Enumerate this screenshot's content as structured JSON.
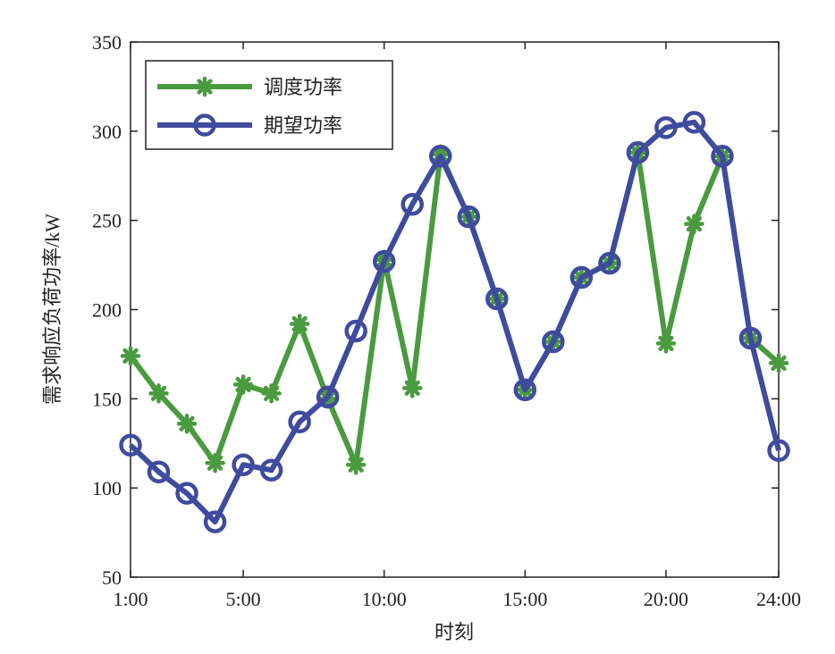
{
  "chart_data": {
    "type": "line",
    "xlabel": "时刻",
    "ylabel": "需求响应负荷功率/kW",
    "x": [
      1,
      2,
      3,
      4,
      5,
      6,
      7,
      8,
      9,
      10,
      11,
      12,
      13,
      14,
      15,
      16,
      17,
      18,
      19,
      20,
      21,
      22,
      23,
      24
    ],
    "xlim": [
      1,
      24
    ],
    "ylim": [
      50,
      350
    ],
    "xticks": [
      {
        "value": 1,
        "label": "1:00"
      },
      {
        "value": 5,
        "label": "5:00"
      },
      {
        "value": 10,
        "label": "10:00"
      },
      {
        "value": 15,
        "label": "15:00"
      },
      {
        "value": 20,
        "label": "20:00"
      },
      {
        "value": 24,
        "label": "24:00"
      }
    ],
    "yticks": [
      {
        "value": 50,
        "label": "50"
      },
      {
        "value": 100,
        "label": "100"
      },
      {
        "value": 150,
        "label": "150"
      },
      {
        "value": 200,
        "label": "200"
      },
      {
        "value": 250,
        "label": "250"
      },
      {
        "value": 300,
        "label": "300"
      },
      {
        "value": 350,
        "label": "350"
      }
    ],
    "grid": false,
    "legend_position": "top-left",
    "series": [
      {
        "name": "调度功率",
        "color": "#4a9a3f",
        "marker": "asterisk",
        "values": [
          174,
          153,
          136,
          114,
          158,
          153,
          192,
          150,
          113,
          228,
          156,
          287,
          252,
          206,
          155,
          182,
          218,
          226,
          288,
          181,
          248,
          286,
          184,
          170
        ]
      },
      {
        "name": "期望功率",
        "color": "#3e4b9e",
        "marker": "circle",
        "values": [
          124,
          109,
          97,
          81,
          113,
          110,
          137,
          151,
          188,
          227,
          259,
          286,
          252,
          206,
          155,
          182,
          218,
          226,
          288,
          302,
          305,
          286,
          184,
          121
        ]
      }
    ]
  }
}
